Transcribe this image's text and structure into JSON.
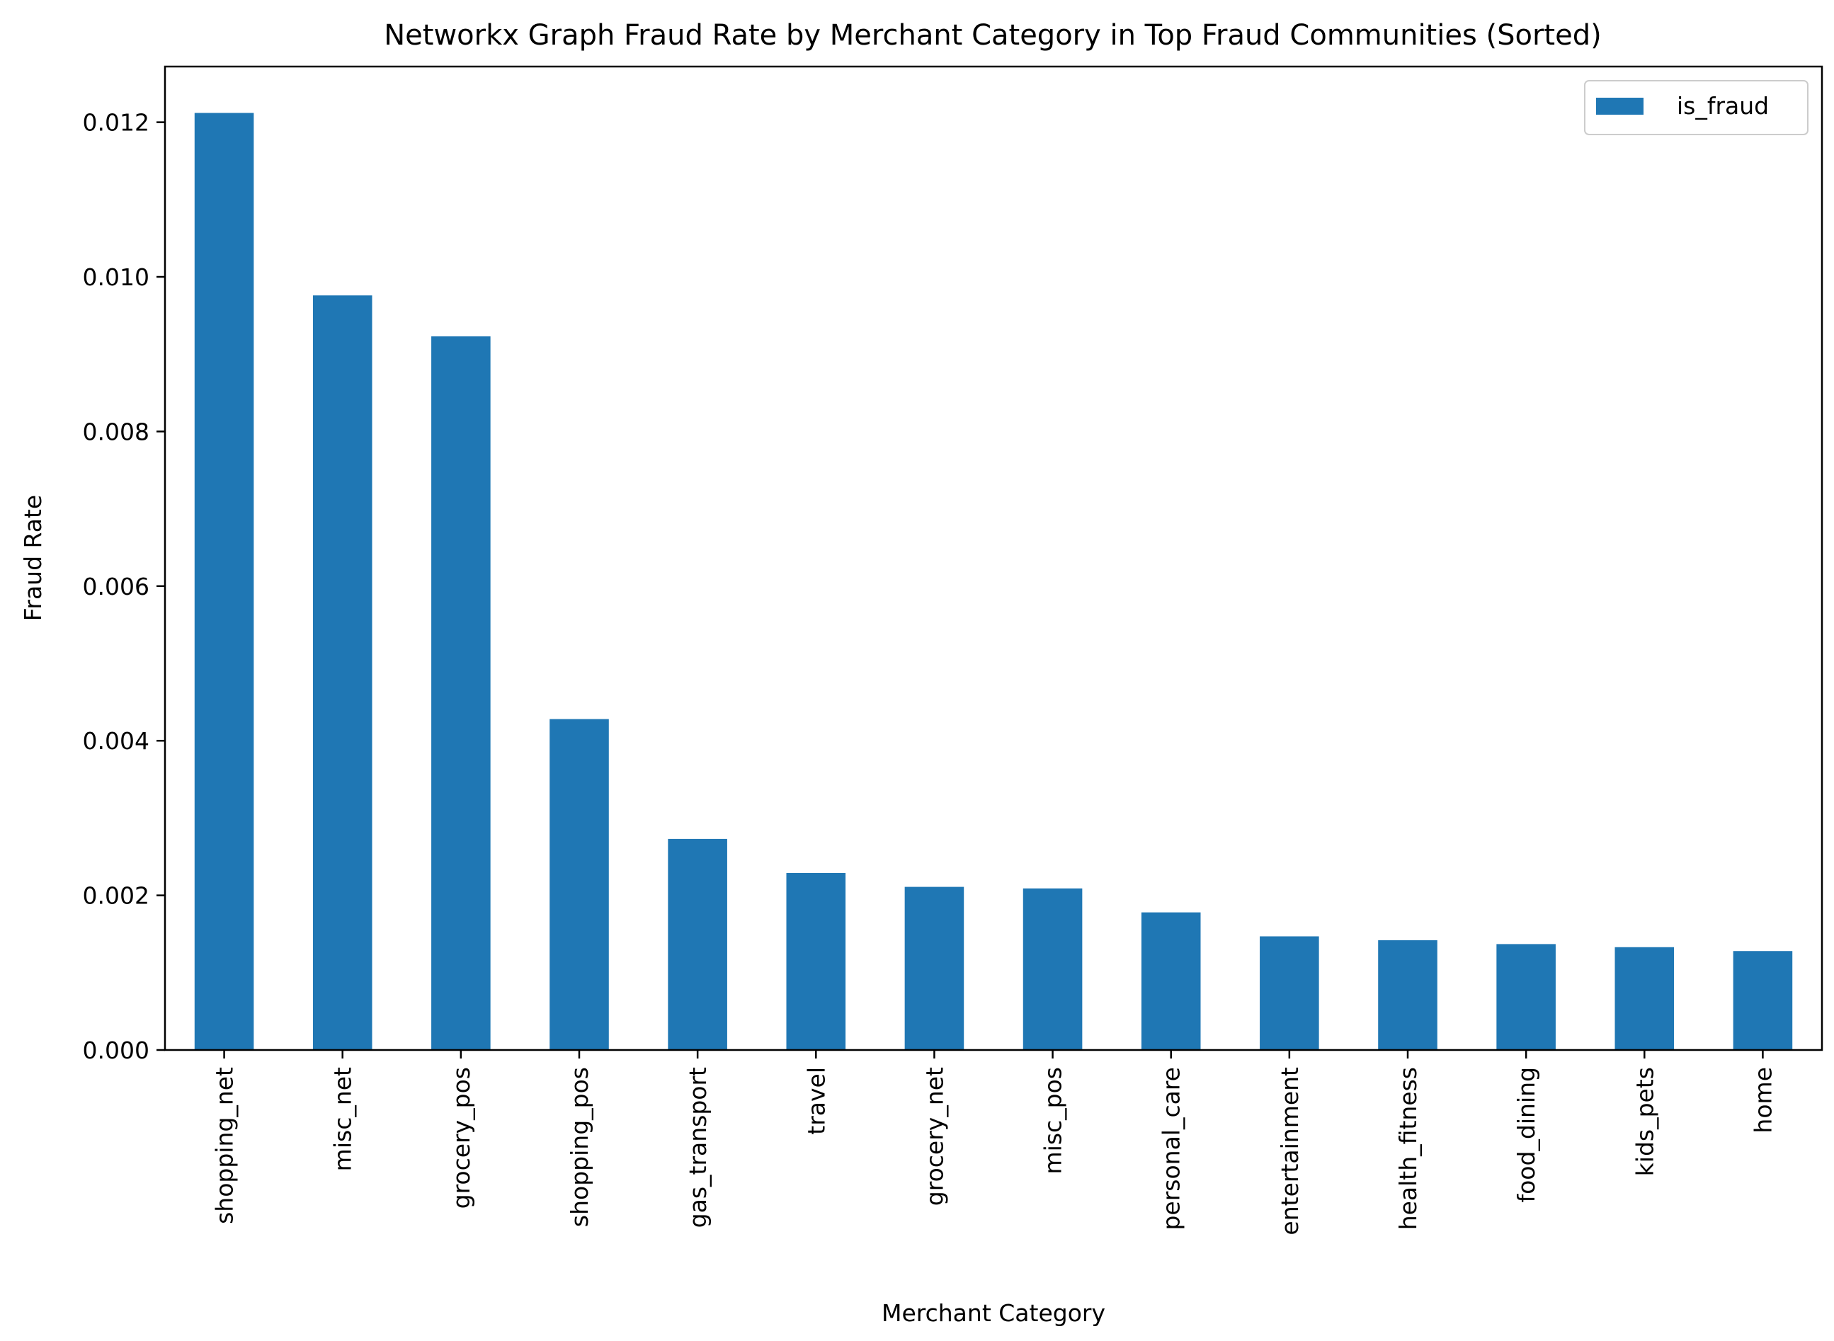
{
  "chart_data": {
    "type": "bar",
    "title": "Networkx Graph Fraud Rate by Merchant Category in Top Fraud Communities (Sorted)",
    "xlabel": "Merchant Category",
    "ylabel": "Fraud Rate",
    "categories": [
      "shopping_net",
      "misc_net",
      "grocery_pos",
      "shopping_pos",
      "gas_transport",
      "travel",
      "grocery_net",
      "misc_pos",
      "personal_care",
      "entertainment",
      "health_fitness",
      "food_dining",
      "kids_pets",
      "home"
    ],
    "series": [
      {
        "name": "is_fraud",
        "color": "#1f77b4",
        "values": [
          0.01212,
          0.00976,
          0.00923,
          0.00428,
          0.00273,
          0.00229,
          0.00211,
          0.00209,
          0.00178,
          0.00147,
          0.00142,
          0.00137,
          0.00133,
          0.00128
        ]
      }
    ],
    "ylim": [
      0,
      0.01272
    ],
    "yticks": [
      "0.000",
      "0.002",
      "0.004",
      "0.006",
      "0.008",
      "0.010",
      "0.012"
    ],
    "ytick_values": [
      0,
      0.002,
      0.004,
      0.006,
      0.008,
      0.01,
      0.012
    ],
    "grid": false,
    "legend_position": "top-right"
  }
}
